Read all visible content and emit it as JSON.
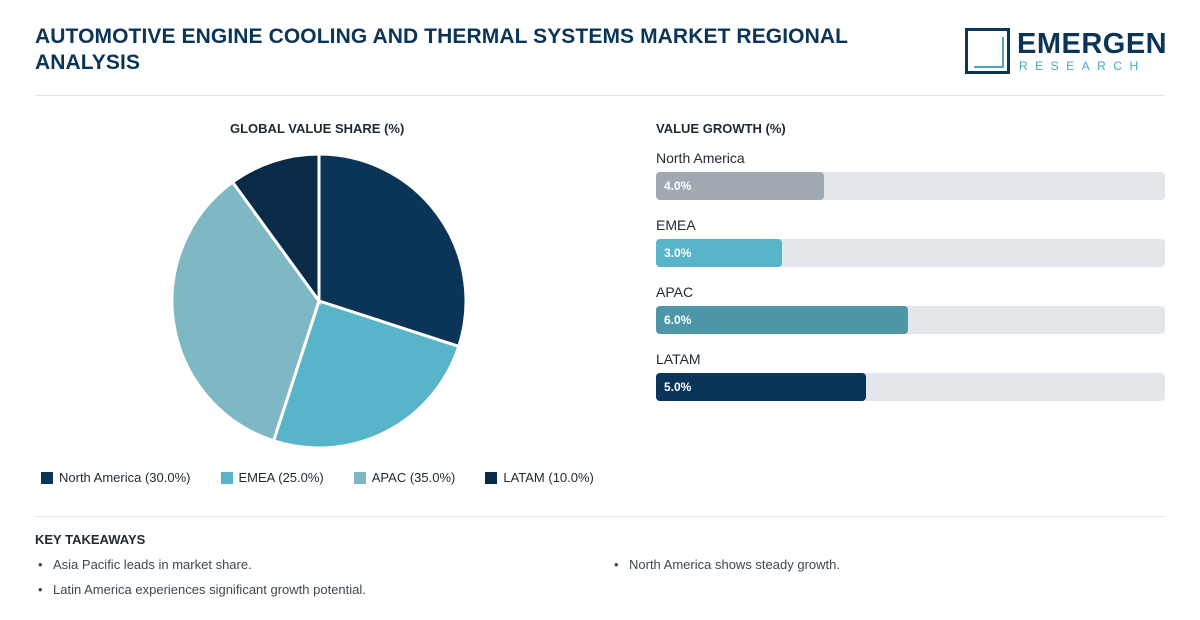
{
  "header": {
    "title": "AUTOMOTIVE ENGINE COOLING AND THERMAL SYSTEMS MARKET REGIONAL ANALYSIS",
    "logo_main": "EMERGEN",
    "logo_sub": "RESEARCH"
  },
  "chart_data": [
    {
      "type": "pie",
      "title": "GLOBAL VALUE SHARE (%)",
      "categories": [
        "North America",
        "EMEA",
        "APAC",
        "LATAM"
      ],
      "values": [
        30.0,
        25.0,
        35.0,
        10.0
      ],
      "legend_labels": [
        "North America (30.0%)",
        "EMEA (25.0%)",
        "APAC (35.0%)",
        "LATAM (10.0%)"
      ],
      "colors": [
        "#0b3558",
        "#58b4c8",
        "#7fb8c5",
        "#0a2b47"
      ],
      "legend": "bottom"
    },
    {
      "type": "bar",
      "orientation": "horizontal",
      "title": "VALUE GROWTH (%)",
      "categories": [
        "North America",
        "EMEA",
        "APAC",
        "LATAM"
      ],
      "values": [
        4.0,
        3.0,
        6.0,
        5.0
      ],
      "value_labels": [
        "4.0%",
        "3.0%",
        "6.0%",
        "5.0%"
      ],
      "colors": [
        "#a0a8b2",
        "#58b4c8",
        "#4d97a8",
        "#0b3558"
      ],
      "xlim": [
        0,
        12.1
      ]
    }
  ],
  "takeaways": {
    "title": "KEY TAKEAWAYS",
    "left": [
      "Asia Pacific leads in market share.",
      "Latin America experiences significant growth potential."
    ],
    "right": [
      "North America shows steady growth."
    ]
  }
}
